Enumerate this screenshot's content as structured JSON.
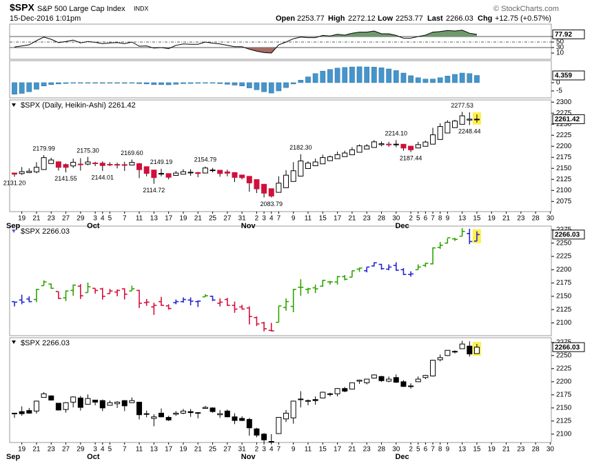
{
  "header": {
    "symbol": "$SPX",
    "name": "S&P 500 Large Cap Index",
    "exchange": "INDX",
    "date": "15-Dec-2016 1:01pm",
    "open_label": "Open",
    "open": 2253.77,
    "high_label": "High",
    "high": 2272.12,
    "low_label": "Low",
    "low": 2253.77,
    "last_label": "Last",
    "last": 2266.03,
    "chg_label": "Chg",
    "chg": "+12.75 (+0.57%)",
    "credit": "© StockCharts.com"
  },
  "chart_data": [
    {
      "type": "rsi",
      "ylim": [
        -12.5,
        115
      ],
      "yticks": [
        10,
        30,
        50,
        70
      ],
      "color": "#000000",
      "overbought_color": "#6f9a6b",
      "oversold_color": "#a86a64",
      "values": [
        32,
        36,
        40,
        55,
        68,
        60,
        48,
        52,
        57,
        47,
        52,
        49,
        44,
        47,
        48,
        44,
        50,
        35,
        36,
        28,
        30,
        26,
        38,
        43,
        42,
        42,
        50,
        46,
        43,
        38,
        33,
        33,
        24,
        17,
        12,
        10,
        40,
        50,
        62,
        68,
        66,
        66,
        74,
        72,
        78,
        75,
        82,
        86,
        86,
        90,
        80,
        80,
        74,
        64,
        64,
        70,
        75,
        86,
        88,
        92,
        90,
        93,
        82,
        77.92,
        null,
        null,
        null,
        null,
        null,
        null,
        null,
        null,
        null,
        null
      ]
    },
    {
      "type": "histogram",
      "ylim": [
        -9.2,
        13.3
      ],
      "yticks": [
        -5,
        0
      ],
      "color": "#4595cc",
      "values": [
        -7,
        -6.5,
        -5.5,
        -4,
        -2,
        -1.2,
        -0.8,
        -0.5,
        -0.2,
        -0.3,
        -0.2,
        -0.3,
        -0.4,
        -0.3,
        -0.3,
        -0.4,
        -0.2,
        -0.6,
        -0.8,
        -1.2,
        -1.2,
        -1.3,
        -1,
        -0.6,
        -0.5,
        -0.4,
        -0.2,
        -0.3,
        -0.6,
        -1,
        -1.5,
        -2,
        -3.2,
        -4.3,
        -5.5,
        -6.3,
        -5,
        -3,
        -0.8,
        1.5,
        3.5,
        5.5,
        7,
        8,
        8.8,
        9.2,
        9.5,
        9.6,
        9.5,
        9.4,
        9,
        8.3,
        7.3,
        5.8,
        4.2,
        3,
        2.2,
        2.2,
        3,
        4,
        5,
        5.8,
        5.5,
        4.359,
        null,
        null,
        null,
        null,
        null,
        null,
        null,
        null,
        null,
        null
      ]
    },
    {
      "type": "heikin-ashi",
      "title": "$SPX (Daily, Heikin-Ashi) 2261.42",
      "ylim": [
        2052,
        2305
      ],
      "yticks": [
        2075,
        2100,
        2125,
        2150,
        2175,
        2200,
        2225,
        2250,
        2275,
        2300
      ],
      "up_color": "#ffffff",
      "down_color": "#d0103a",
      "open": [
        2139.5,
        2138.2,
        2140.4,
        2142,
        2147.3,
        2160.8,
        2164.9,
        2158.6,
        2155.5,
        2159.7,
        2159.6,
        2162.1,
        2161.8,
        2159.1,
        2158.8,
        2158.4,
        2157.6,
        2160.6,
        2153.8,
        2146.2,
        2137.6,
        2138.1,
        2134,
        2136.7,
        2139.6,
        2140.5,
        2139.4,
        2145.1,
        2145.7,
        2142,
        2140.5,
        2135,
        2131.9,
        2124.5,
        2114,
        2103.9,
        2095.6,
        2106.1,
        2120.3,
        2132.4,
        2149.6,
        2155.8,
        2160.2,
        2167.4,
        2171.9,
        2176.5,
        2180.7,
        2186.4,
        2193.7,
        2197.3,
        2203.7,
        2204.8,
        2204.3,
        2204.6,
        2200.3,
        2196.2,
        2200,
        2204.8,
        2215.4,
        2230.1,
        2242.3,
        2249.8,
        2259.4,
        2260.5,
        null,
        null,
        null,
        null,
        null,
        null,
        null,
        null,
        null,
        null
      ],
      "close": [
        2136.8,
        2142.5,
        2143.5,
        2152.5,
        2174.3,
        2169,
        2152.3,
        2152.3,
        2163.8,
        2159.5,
        2164.5,
        2161.5,
        2156.3,
        2158.5,
        2158,
        2156.8,
        2163.5,
        2147,
        2138.5,
        2129,
        2138.5,
        2129.8,
        2139.3,
        2142.5,
        2141.3,
        2138.3,
        2150.8,
        2146.3,
        2138.3,
        2139,
        2129.5,
        2128.8,
        2117,
        2103.5,
        2093.8,
        2087.3,
        2116.5,
        2134.5,
        2144.5,
        2166.8,
        2162,
        2164.5,
        2174.5,
        2176.3,
        2181,
        2184.8,
        2192,
        2201,
        2200.8,
        2210,
        2205.8,
        2203.8,
        2204.8,
        2196,
        2192,
        2203.8,
        2209.5,
        2226,
        2244.8,
        2254.5,
        2257.3,
        2269,
        2261.5,
        2261.42,
        null,
        null,
        null,
        null,
        null,
        null,
        null,
        null,
        null,
        null
      ],
      "annotations": [
        {
          "value": 2131.2,
          "label": "2131.20"
        },
        2179.99,
        2141.55,
        {
          "value": 2175.3,
          "label": "2175.30"
        },
        2144.01,
        {
          "value": 2169.6,
          "label": "2169.60"
        },
        2149.19,
        2114.72,
        2154.79,
        2083.79,
        {
          "value": 2182.3,
          "label": "2182.30"
        },
        {
          "value": 2214.1,
          "label": "2214.10"
        },
        2187.44,
        2277.53,
        2248.44
      ]
    },
    {
      "type": "ohlc",
      "title": "$SPX 2266.03",
      "ylim": [
        2076,
        2282
      ],
      "yticks": [
        2100,
        2125,
        2150,
        2175,
        2200,
        2225,
        2250,
        2275
      ],
      "colors": [
        "#2424d0",
        "#2424d0",
        "#2424d0",
        "#2ea300",
        "#2ea300",
        "#2ea300",
        "#d40f3c",
        "#2ea300",
        "#2ea300",
        "#d40f3c",
        "#2ea300",
        "#d40f3c",
        "#d40f3c",
        "#d40f3c",
        "#d40f3c",
        "#d40f3c",
        "#2ea300",
        "#d40f3c",
        "#d40f3c",
        "#d40f3c",
        "#d40f3c",
        "#d40f3c",
        "#2424d0",
        "#2424d0",
        "#2424d0",
        "#2424d0",
        "#2ea300",
        "#2424d0",
        "#d40f3c",
        "#d40f3c",
        "#d40f3c",
        "#d40f3c",
        "#d40f3c",
        "#d40f3c",
        "#d40f3c",
        "#d40f3c",
        "#2ea300",
        "#2ea300",
        "#2ea300",
        "#2ea300",
        "#2ea300",
        "#2ea300",
        "#2ea300",
        "#2ea300",
        "#2ea300",
        "#2ea300",
        "#2ea300",
        "#2ea300",
        "#2424d0",
        "#2424d0",
        "#2424d0",
        "#2424d0",
        "#2424d0",
        "#2424d0",
        "#2424d0",
        "#2ea300",
        "#2ea300",
        "#2ea300",
        "#2ea300",
        "#2ea300",
        "#2ea300",
        "#2ea300",
        "#2424d0",
        "#2424d0",
        null,
        null,
        null,
        null,
        null,
        null,
        null,
        null,
        null,
        null
      ]
    },
    {
      "type": "candlestick",
      "title": "$SPX 2266.03",
      "ylim": [
        2084,
        2284
      ],
      "yticks": [
        2100,
        2125,
        2150,
        2175,
        2200,
        2225,
        2250,
        2275
      ],
      "up_color": "#ffffff",
      "down_color": "#000000",
      "categories": [
        null,
        "19",
        null,
        "21",
        null,
        "23",
        null,
        "27",
        null,
        "29",
        null,
        "3",
        "4",
        "5",
        null,
        "7",
        null,
        "11",
        null,
        "13",
        null,
        "17",
        null,
        "19",
        null,
        "21",
        null,
        "25",
        null,
        "27",
        null,
        "31",
        null,
        "2",
        "3",
        "4",
        "7",
        null,
        "9",
        null,
        "11",
        null,
        "15",
        null,
        "17",
        null,
        "21",
        null,
        "23",
        null,
        "28",
        null,
        "30",
        null,
        "2",
        "5",
        "6",
        "7",
        "8",
        "9",
        null,
        "13",
        null,
        "15",
        null,
        "19",
        null,
        "21",
        null,
        "23",
        null,
        "28",
        null,
        "30"
      ],
      "months": [
        "Sep",
        null,
        null,
        null,
        null,
        null,
        null,
        null,
        null,
        null,
        null,
        "Oct",
        null,
        null,
        null,
        null,
        null,
        null,
        null,
        null,
        null,
        null,
        null,
        null,
        null,
        null,
        null,
        null,
        null,
        null,
        null,
        null,
        "Nov",
        null,
        null,
        null,
        null,
        null,
        null,
        null,
        null,
        null,
        null,
        null,
        null,
        null,
        null,
        null,
        null,
        null,
        null,
        null,
        null,
        "Dec",
        null,
        null,
        null,
        null,
        null,
        null,
        null,
        null,
        null,
        null,
        null,
        null,
        null,
        null,
        null,
        null,
        null,
        null,
        null,
        null
      ],
      "open": [
        2140,
        2143,
        2145,
        2144,
        2170,
        2173,
        2159,
        2147,
        2161,
        2169,
        2157,
        2165,
        2164,
        2155,
        2158,
        2164,
        2160,
        2161,
        2138,
        2130,
        2140,
        2132,
        2138,
        2140,
        2143,
        2140,
        2149,
        2150,
        2137,
        2144,
        2133,
        2130,
        2128,
        2110,
        2100,
        2086,
        2101,
        2129,
        2131,
        2167,
        2163,
        2166,
        2169,
        2177,
        2177,
        2187,
        2186,
        2201,
        2198,
        2207,
        2210,
        2201,
        2208,
        2200,
        2191,
        2200,
        2208,
        2211,
        2242,
        2250,
        2258,
        2263,
        2268,
        2253.77,
        null,
        null,
        null,
        null,
        null,
        null,
        null,
        null,
        null,
        null
      ],
      "high": [
        2140,
        2153,
        2150,
        2164,
        2180,
        2174,
        2159,
        2161,
        2172,
        2173,
        2176,
        2165,
        2166,
        2164,
        2163,
        2165,
        2170,
        2162,
        2145,
        2138,
        2149,
        2135,
        2144,
        2148,
        2148,
        2142,
        2154,
        2151,
        2146,
        2147,
        2140,
        2134,
        2131,
        2112,
        2102,
        2100,
        2132,
        2146,
        2164,
        2182,
        2166,
        2172,
        2181,
        2179,
        2188,
        2190,
        2198,
        2204,
        2205,
        2214,
        2211,
        2210,
        2214,
        2203,
        2197,
        2210,
        2213,
        2242,
        2252,
        2259,
        2260,
        2278,
        2277,
        2272.12,
        null,
        null,
        null,
        null,
        null,
        null,
        null,
        null,
        null,
        null
      ],
      "low": [
        2131,
        2135,
        2139,
        2139,
        2170,
        2164,
        2145,
        2141,
        2151,
        2145,
        2157,
        2155,
        2144,
        2155,
        2150,
        2144,
        2160,
        2128,
        2132,
        2115,
        2132,
        2125,
        2135,
        2138,
        2133,
        2130,
        2149,
        2141,
        2131,
        2132,
        2119,
        2125,
        2097,
        2094,
        2084,
        2084,
        2101,
        2123,
        2120,
        2151,
        2155,
        2156,
        2168,
        2172,
        2172,
        2180,
        2186,
        2196,
        2195,
        2206,
        2200,
        2199,
        2198,
        2190,
        2187,
        2200,
        2205,
        2210,
        2239,
        2249,
        2254,
        2263,
        2248,
        2253.77,
        null,
        null,
        null,
        null,
        null,
        null,
        null,
        null,
        null,
        null
      ],
      "close": [
        2139,
        2139,
        2140,
        2163,
        2177,
        2165,
        2146,
        2160,
        2171,
        2151,
        2168,
        2161,
        2150,
        2160,
        2161,
        2154,
        2164,
        2137,
        2139,
        2133,
        2133,
        2127,
        2140,
        2144,
        2141,
        2141,
        2151,
        2143,
        2139,
        2133,
        2126,
        2126,
        2112,
        2098,
        2089,
        2085,
        2132,
        2140,
        2163,
        2167,
        2164,
        2164,
        2180,
        2177,
        2187,
        2182,
        2198,
        2203,
        2205,
        2213,
        2202,
        2205,
        2199,
        2191,
        2192,
        2205,
        2212,
        2241,
        2246,
        2260,
        2257,
        2272,
        2253,
        2266.03,
        null,
        null,
        null,
        null,
        null,
        null,
        null,
        null,
        null,
        null
      ]
    }
  ]
}
